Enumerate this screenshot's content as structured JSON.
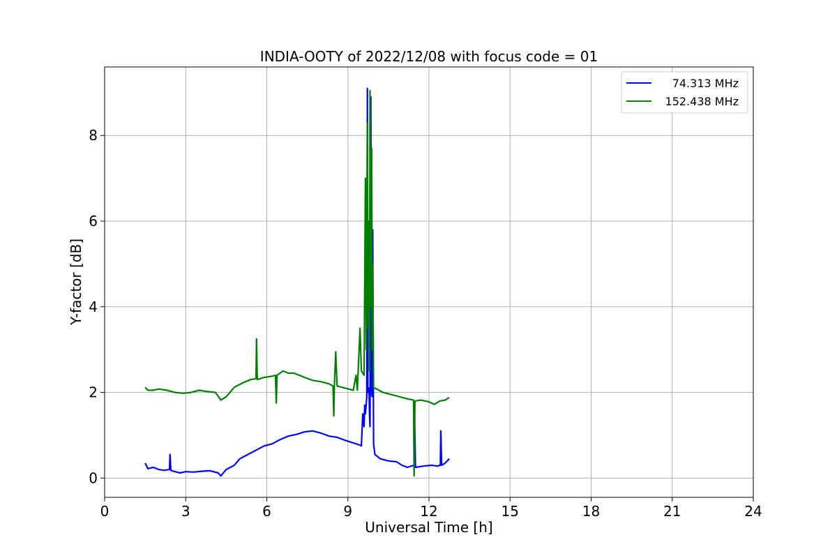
{
  "chart_data": {
    "type": "line",
    "title": "INDIA-OOTY of 2022/12/08 with focus code = 01",
    "xlabel": "Universal Time [h]",
    "ylabel": "Y-factor [dB]",
    "xlim": [
      0,
      24
    ],
    "ylim": [
      -0.45,
      9.6
    ],
    "xticks": [
      0,
      3,
      6,
      9,
      12,
      15,
      18,
      21,
      24
    ],
    "yticks": [
      0,
      2,
      4,
      6,
      8
    ],
    "xtick_labels": [
      "0",
      "3",
      "6",
      "9",
      "12",
      "15",
      "18",
      "21",
      "24"
    ],
    "ytick_labels": [
      "0",
      "2",
      "4",
      "6",
      "8"
    ],
    "grid": true,
    "legend_position": "top-right",
    "series": [
      {
        "name": "74.313 MHz",
        "color": "#0000ff",
        "points": [
          [
            1.5,
            0.35
          ],
          [
            1.6,
            0.22
          ],
          [
            1.8,
            0.25
          ],
          [
            2.0,
            0.2
          ],
          [
            2.2,
            0.18
          ],
          [
            2.4,
            0.2
          ],
          [
            2.42,
            0.55
          ],
          [
            2.45,
            0.18
          ],
          [
            2.6,
            0.15
          ],
          [
            2.8,
            0.12
          ],
          [
            3.0,
            0.15
          ],
          [
            3.3,
            0.14
          ],
          [
            3.6,
            0.16
          ],
          [
            3.9,
            0.17
          ],
          [
            4.2,
            0.12
          ],
          [
            4.3,
            0.05
          ],
          [
            4.5,
            0.2
          ],
          [
            4.8,
            0.3
          ],
          [
            5.0,
            0.45
          ],
          [
            5.3,
            0.55
          ],
          [
            5.6,
            0.65
          ],
          [
            5.9,
            0.75
          ],
          [
            6.2,
            0.8
          ],
          [
            6.5,
            0.9
          ],
          [
            6.8,
            0.98
          ],
          [
            7.1,
            1.02
          ],
          [
            7.4,
            1.08
          ],
          [
            7.7,
            1.1
          ],
          [
            8.0,
            1.05
          ],
          [
            8.3,
            0.98
          ],
          [
            8.6,
            0.95
          ],
          [
            8.9,
            0.88
          ],
          [
            9.2,
            0.82
          ],
          [
            9.4,
            0.78
          ],
          [
            9.5,
            0.75
          ],
          [
            9.55,
            1.5
          ],
          [
            9.6,
            1.2
          ],
          [
            9.62,
            1.7
          ],
          [
            9.65,
            1.5
          ],
          [
            9.7,
            1.9
          ],
          [
            9.72,
            9.1
          ],
          [
            9.74,
            2.0
          ],
          [
            9.78,
            2.1
          ],
          [
            9.8,
            1.5
          ],
          [
            9.82,
            1.2
          ],
          [
            9.85,
            8.9
          ],
          [
            9.87,
            2.0
          ],
          [
            9.9,
            1.9
          ],
          [
            9.92,
            5.8
          ],
          [
            9.95,
            0.8
          ],
          [
            10.0,
            0.55
          ],
          [
            10.2,
            0.45
          ],
          [
            10.5,
            0.4
          ],
          [
            10.8,
            0.38
          ],
          [
            11.0,
            0.3
          ],
          [
            11.2,
            0.25
          ],
          [
            11.45,
            0.3
          ],
          [
            11.47,
            1.35
          ],
          [
            11.5,
            0.25
          ],
          [
            11.8,
            0.28
          ],
          [
            12.1,
            0.3
          ],
          [
            12.3,
            0.28
          ],
          [
            12.42,
            0.3
          ],
          [
            12.44,
            1.1
          ],
          [
            12.47,
            0.3
          ],
          [
            12.6,
            0.35
          ],
          [
            12.75,
            0.45
          ]
        ]
      },
      {
        "name": "152.438 MHz",
        "color": "#008000",
        "points": [
          [
            1.5,
            2.12
          ],
          [
            1.6,
            2.05
          ],
          [
            1.8,
            2.05
          ],
          [
            2.0,
            2.08
          ],
          [
            2.3,
            2.05
          ],
          [
            2.6,
            2.0
          ],
          [
            2.9,
            1.98
          ],
          [
            3.2,
            2.0
          ],
          [
            3.5,
            2.05
          ],
          [
            3.8,
            2.02
          ],
          [
            4.1,
            2.0
          ],
          [
            4.3,
            1.82
          ],
          [
            4.5,
            1.9
          ],
          [
            4.8,
            2.12
          ],
          [
            5.1,
            2.22
          ],
          [
            5.4,
            2.3
          ],
          [
            5.6,
            2.32
          ],
          [
            5.62,
            3.25
          ],
          [
            5.65,
            2.3
          ],
          [
            5.9,
            2.35
          ],
          [
            6.2,
            2.38
          ],
          [
            6.32,
            2.4
          ],
          [
            6.35,
            1.75
          ],
          [
            6.38,
            2.4
          ],
          [
            6.6,
            2.5
          ],
          [
            6.8,
            2.45
          ],
          [
            7.0,
            2.45
          ],
          [
            7.2,
            2.4
          ],
          [
            7.4,
            2.35
          ],
          [
            7.7,
            2.28
          ],
          [
            8.0,
            2.25
          ],
          [
            8.3,
            2.2
          ],
          [
            8.45,
            2.15
          ],
          [
            8.48,
            1.45
          ],
          [
            8.5,
            2.15
          ],
          [
            8.55,
            2.95
          ],
          [
            8.6,
            2.15
          ],
          [
            8.9,
            2.1
          ],
          [
            9.2,
            2.05
          ],
          [
            9.3,
            2.4
          ],
          [
            9.35,
            2.05
          ],
          [
            9.45,
            3.5
          ],
          [
            9.5,
            2.5
          ],
          [
            9.6,
            2.4
          ],
          [
            9.65,
            7.0
          ],
          [
            9.68,
            3.0
          ],
          [
            9.72,
            8.3
          ],
          [
            9.75,
            3.5
          ],
          [
            9.78,
            6.0
          ],
          [
            9.8,
            2.5
          ],
          [
            9.82,
            9.05
          ],
          [
            9.85,
            4.0
          ],
          [
            9.88,
            7.7
          ],
          [
            9.9,
            3.0
          ],
          [
            9.92,
            5.0
          ],
          [
            9.95,
            2.1
          ],
          [
            10.0,
            2.1
          ],
          [
            10.3,
            2.0
          ],
          [
            10.6,
            1.95
          ],
          [
            10.9,
            1.9
          ],
          [
            11.2,
            1.85
          ],
          [
            11.43,
            1.82
          ],
          [
            11.45,
            0.05
          ],
          [
            11.48,
            1.8
          ],
          [
            11.7,
            1.82
          ],
          [
            12.0,
            1.78
          ],
          [
            12.2,
            1.72
          ],
          [
            12.4,
            1.8
          ],
          [
            12.6,
            1.82
          ],
          [
            12.75,
            1.88
          ]
        ]
      }
    ]
  }
}
